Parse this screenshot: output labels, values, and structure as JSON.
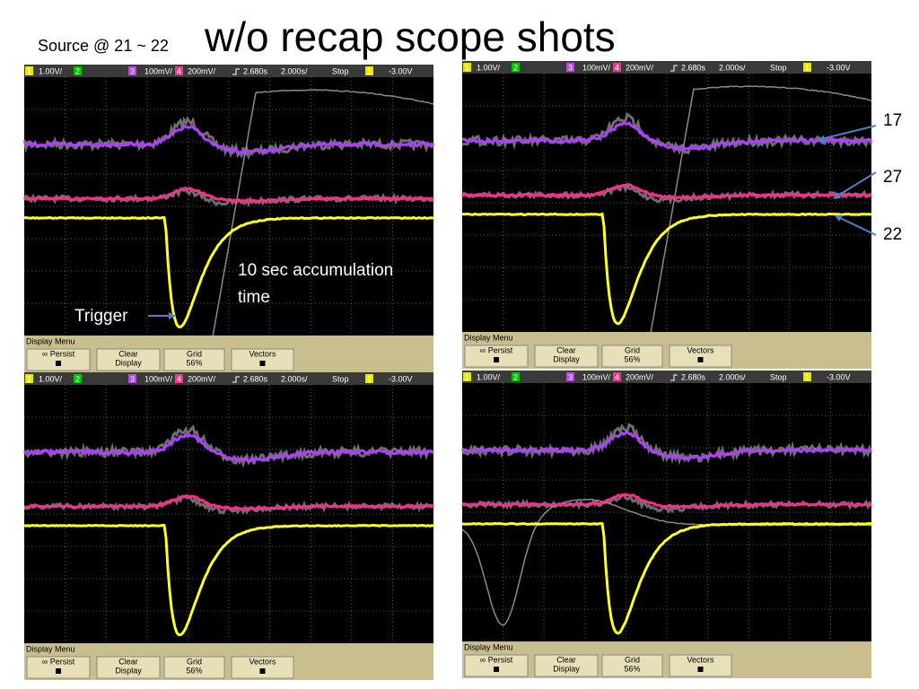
{
  "title": {
    "prefix": "Source @ 21 ~ 22",
    "main": "w/o recap scope shots"
  },
  "annotations": {
    "accumulation_line1": "10 sec accumulation",
    "accumulation_line2": "time",
    "trigger": "Trigger",
    "label_17": "17",
    "label_27": "27",
    "label_22": "22"
  },
  "panels": [
    {
      "header": [
        "1",
        "1.00V/",
        "2",
        "3",
        "100mV/",
        "4",
        "200mV/",
        "2.680s",
        "2.000s/",
        "Stop",
        "1",
        "-3.00V"
      ],
      "menu": {
        "title": "Display Menu",
        "buttons": [
          "∞ Persist",
          "Clear",
          "Display",
          "Grid",
          "56%",
          "Vectors"
        ]
      }
    },
    {
      "header": [
        "1",
        "1.00V/",
        "2",
        "3",
        "100mV/",
        "4",
        "200mV/",
        "2.680s",
        "2.000s/",
        "Stop",
        "1",
        "-3.00V"
      ],
      "menu": {
        "title": "Display Menu",
        "buttons": [
          "∞ Persist",
          "Clear",
          "Display",
          "Grid",
          "56%",
          "Vectors"
        ]
      }
    },
    {
      "header": [
        "1",
        "1.00V/",
        "2",
        "3",
        "100mV/",
        "4",
        "200mV/",
        "2.680s",
        "2.000s/",
        "Stop",
        "1",
        "-3.00V"
      ],
      "menu": {
        "title": "Display Menu",
        "buttons": [
          "∞ Persist",
          "Clear",
          "Display",
          "Grid",
          "56%",
          "Vectors"
        ]
      }
    },
    {
      "header": [
        "1",
        "1.00V/",
        "2",
        "3",
        "100mV/",
        "4",
        "200mV/",
        "2.680s",
        "2.000s/",
        "Stop",
        "1",
        "-3.00V"
      ],
      "menu": {
        "title": "Display Menu",
        "buttons": [
          "∞ Persist",
          "Clear",
          "Display",
          "Grid",
          "56%",
          "Vectors"
        ]
      }
    }
  ]
}
